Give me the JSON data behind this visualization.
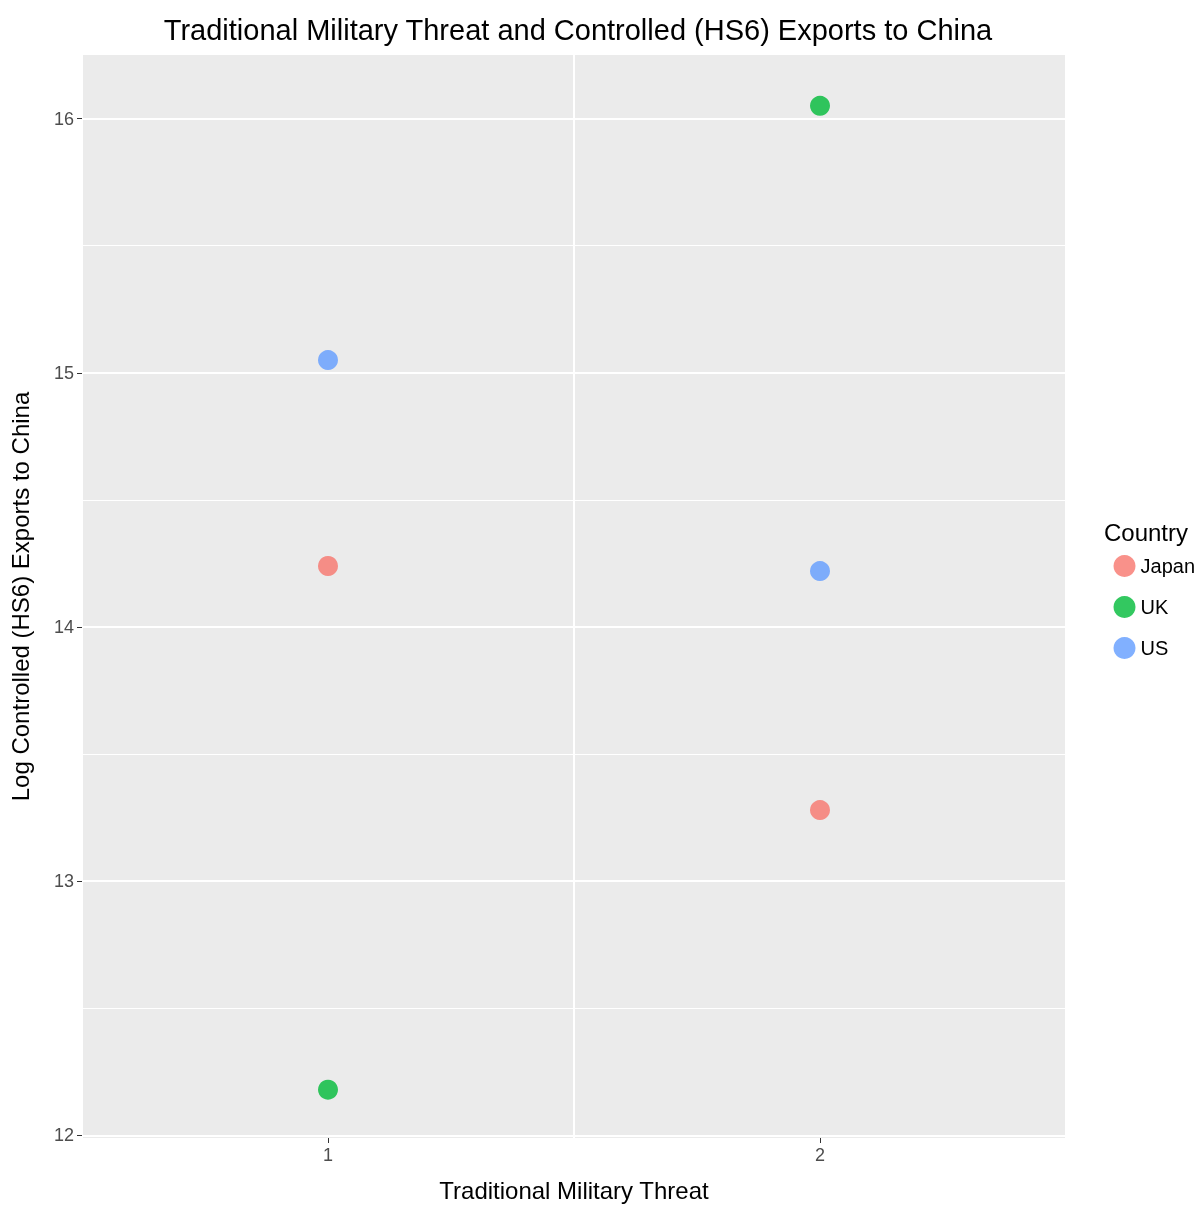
{
  "chart_data": {
    "type": "scatter",
    "title": "Traditional Military Threat and Controlled (HS6) Exports to China",
    "xlabel": "Traditional Military Threat",
    "ylabel": "Log Controlled (HS6) Exports to China",
    "legend_title": "Country",
    "categories": [
      "1",
      "2"
    ],
    "series": [
      {
        "name": "Japan",
        "color": "#f8766d",
        "values": [
          14.24,
          13.28
        ]
      },
      {
        "name": "UK",
        "color": "#00ba38",
        "values": [
          12.18,
          16.05
        ]
      },
      {
        "name": "US",
        "color": "#619cff",
        "values": [
          15.05,
          14.22
        ]
      }
    ],
    "ylim": [
      11.99,
      16.25
    ],
    "yticks": [
      12,
      13,
      14,
      15,
      16
    ],
    "grid": true,
    "legend": "right",
    "marker": "circle"
  }
}
